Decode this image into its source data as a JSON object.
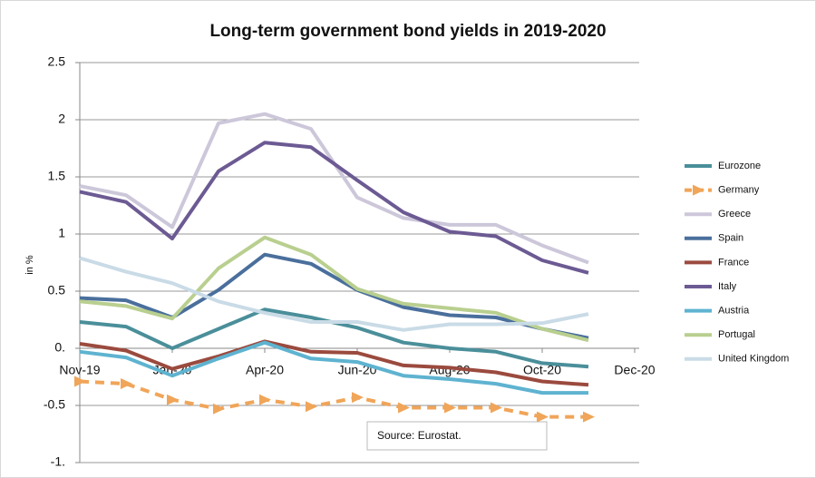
{
  "chart_data": {
    "type": "line",
    "title": "Long-term government bond yields in 2019-2020",
    "y_label": "in %",
    "annotation": "Source: Eurostat.",
    "x": [
      0,
      1,
      2,
      3,
      4,
      5,
      6,
      7,
      8,
      9,
      10,
      11
    ],
    "xlim": [
      0,
      12
    ],
    "xticks": [
      {
        "value": 0,
        "label": "Nov-19"
      },
      {
        "value": 2,
        "label": "Jan-20"
      },
      {
        "value": 4,
        "label": "Apr-20"
      },
      {
        "value": 6,
        "label": "Jun-20"
      },
      {
        "value": 8,
        "label": "Aug-20"
      },
      {
        "value": 10,
        "label": "Oct-20"
      },
      {
        "value": 12,
        "label": "Dec-20"
      }
    ],
    "ylim": [
      -1,
      2.5
    ],
    "yticks": [
      {
        "value": -1,
        "label": "-1."
      },
      -0.5,
      {
        "value": 0,
        "label": "0."
      },
      0.5,
      1,
      1.5,
      2,
      2.5
    ],
    "grid": true,
    "legend": "right",
    "series": [
      {
        "name": "Eurozone",
        "color": "#4a8f9a",
        "values": [
          0.23,
          0.19,
          0.0,
          0.17,
          0.34,
          0.27,
          0.18,
          0.05,
          0.0,
          -0.03,
          -0.13,
          -0.16
        ]
      },
      {
        "name": "Germany",
        "color": "#f0a559",
        "dashed": true,
        "values": [
          -0.29,
          -0.31,
          -0.45,
          -0.53,
          -0.45,
          -0.51,
          -0.43,
          -0.52,
          -0.52,
          -0.52,
          -0.6,
          -0.6
        ]
      },
      {
        "name": "Greece",
        "color": "#cdc7da",
        "values": [
          1.42,
          1.34,
          1.06,
          1.97,
          2.05,
          1.92,
          1.32,
          1.14,
          1.08,
          1.08,
          0.9,
          0.75
        ]
      },
      {
        "name": "Spain",
        "color": "#4a6f9c",
        "values": [
          0.44,
          0.42,
          0.27,
          0.51,
          0.82,
          0.74,
          0.51,
          0.36,
          0.29,
          0.27,
          0.17,
          0.09
        ]
      },
      {
        "name": "France",
        "color": "#9b4a3e",
        "values": [
          0.04,
          -0.02,
          -0.18,
          -0.07,
          0.06,
          -0.03,
          -0.04,
          -0.15,
          -0.17,
          -0.21,
          -0.29,
          -0.32
        ]
      },
      {
        "name": "Italy",
        "color": "#6c5a93",
        "values": [
          1.37,
          1.28,
          0.96,
          1.55,
          1.8,
          1.76,
          1.47,
          1.19,
          1.02,
          0.98,
          0.77,
          0.66
        ]
      },
      {
        "name": "Austria",
        "color": "#5eb3d0",
        "values": [
          -0.03,
          -0.08,
          -0.24,
          -0.09,
          0.05,
          -0.09,
          -0.12,
          -0.24,
          -0.27,
          -0.31,
          -0.39,
          -0.39
        ]
      },
      {
        "name": "Portugal",
        "color": "#b9cf8f",
        "values": [
          0.41,
          0.37,
          0.26,
          0.7,
          0.97,
          0.82,
          0.52,
          0.39,
          0.35,
          0.31,
          0.17,
          0.07
        ]
      },
      {
        "name": "United Kingdom",
        "color": "#c9dbe6",
        "values": [
          0.79,
          0.67,
          0.57,
          0.41,
          0.31,
          0.23,
          0.23,
          0.16,
          0.21,
          0.21,
          0.22,
          0.3
        ]
      }
    ]
  }
}
